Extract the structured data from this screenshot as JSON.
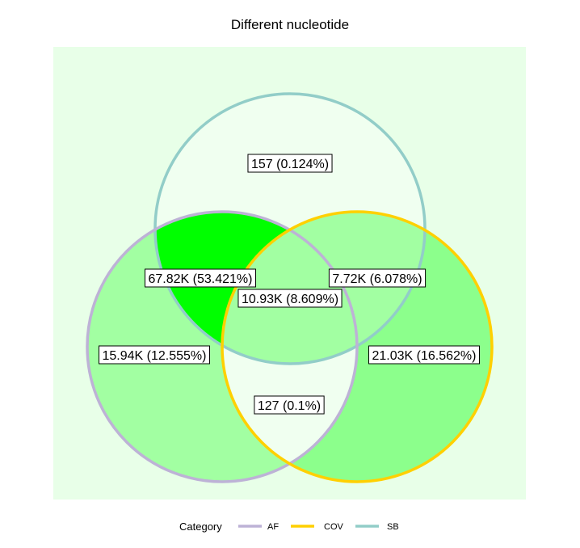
{
  "chart_data": {
    "type": "venn",
    "title": "Different nucleotide",
    "sets": [
      {
        "name": "AF",
        "color": "#bdb2d6"
      },
      {
        "name": "COV",
        "color": "#ffd000"
      },
      {
        "name": "SB",
        "color": "#92cdc8"
      }
    ],
    "regions": [
      {
        "sets": [
          "SB"
        ],
        "label": "157 (0.124%)",
        "value": 157,
        "percent": 0.124,
        "fill": "#f0fff0"
      },
      {
        "sets": [
          "AF",
          "SB"
        ],
        "label": "67.82K (53.421%)",
        "value": 67820,
        "percent": 53.421,
        "fill": "#00ff00"
      },
      {
        "sets": [
          "COV",
          "SB"
        ],
        "label": "7.72K (6.078%)",
        "value": 7720,
        "percent": 6.078,
        "fill": "#a2ffa2"
      },
      {
        "sets": [
          "AF",
          "COV",
          "SB"
        ],
        "label": "10.93K (8.609%)",
        "value": 10930,
        "percent": 8.609,
        "fill": "#a2ffa2"
      },
      {
        "sets": [
          "AF"
        ],
        "label": "15.94K (12.555%)",
        "value": 15940,
        "percent": 12.555,
        "fill": "#a2ffa2"
      },
      {
        "sets": [
          "COV"
        ],
        "label": "21.03K (16.562%)",
        "value": 21030,
        "percent": 16.562,
        "fill": "#8cff8c"
      },
      {
        "sets": [
          "AF",
          "COV"
        ],
        "label": "127 (0.1%)",
        "value": 127,
        "percent": 0.1,
        "fill": "#f0fff0"
      }
    ],
    "panel_background": "#e8ffe8",
    "legend": {
      "title": "Category",
      "position": "bottom"
    }
  }
}
